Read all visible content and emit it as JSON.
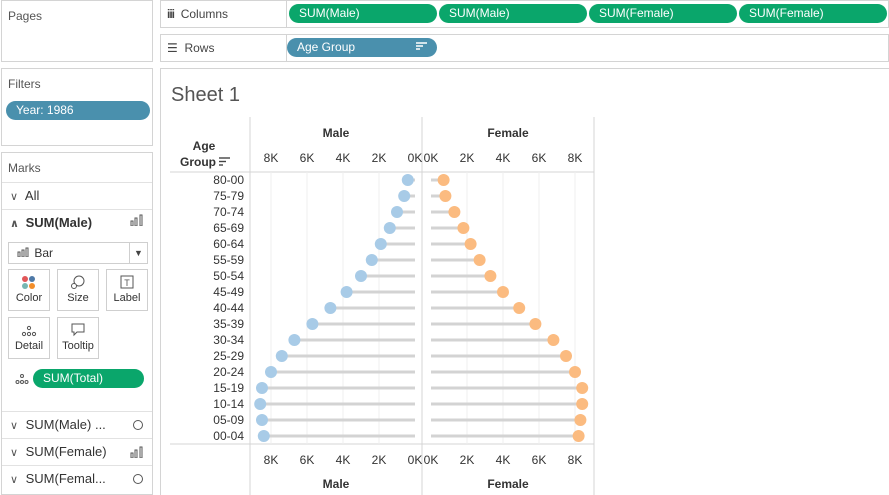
{
  "pages": {
    "title": "Pages"
  },
  "filters": {
    "title": "Filters",
    "pill": "Year: 1986"
  },
  "marks": {
    "title": "Marks",
    "all_label": "All",
    "active_label": "SUM(Male)",
    "mark_type": "Bar",
    "buttons": {
      "color": "Color",
      "size": "Size",
      "label": "Label",
      "detail": "Detail",
      "tooltip": "Tooltip"
    },
    "detail_pill": "SUM(Total)",
    "other_cards": [
      "SUM(Male) ...",
      "SUM(Female)",
      "SUM(Femal..."
    ]
  },
  "columns": {
    "label": "Columns",
    "pills": [
      "SUM(Male)",
      "SUM(Male)",
      "SUM(Female)",
      "SUM(Female)"
    ]
  },
  "rows": {
    "label": "Rows",
    "pill": "Age Group"
  },
  "sheet": {
    "title": "Sheet 1"
  },
  "colors": {
    "green": "#0aa66b",
    "blue": "#4a90ad",
    "male": "#a8cbe7",
    "female": "#fbbb80",
    "bar": "#d3d3d3"
  },
  "chart_data": {
    "type": "scatter",
    "row_header": [
      "Age",
      "Group"
    ],
    "panes": [
      {
        "title": "Male",
        "axis": "reversed",
        "ticks": [
          "8K",
          "6K",
          "4K",
          "2K",
          "0K"
        ],
        "tick_values": [
          8000,
          6000,
          4000,
          2000,
          0
        ],
        "range": [
          0,
          9000
        ]
      },
      {
        "title": "Female",
        "axis": "normal",
        "ticks": [
          "0K",
          "2K",
          "4K",
          "6K",
          "8K"
        ],
        "tick_values": [
          0,
          2000,
          4000,
          6000,
          8000
        ],
        "range": [
          0,
          9000
        ]
      }
    ],
    "categories": [
      "80-00",
      "75-79",
      "70-74",
      "65-69",
      "60-64",
      "55-59",
      "50-54",
      "45-49",
      "40-44",
      "35-39",
      "30-34",
      "25-29",
      "20-24",
      "15-19",
      "10-14",
      "05-09",
      "00-04"
    ],
    "series": [
      {
        "name": "Male",
        "values": [
          400,
          600,
          1000,
          1400,
          1900,
          2400,
          3000,
          3800,
          4700,
          5700,
          6700,
          7400,
          8000,
          8500,
          8600,
          8500,
          8400
        ]
      },
      {
        "name": "Female",
        "values": [
          700,
          800,
          1300,
          1800,
          2200,
          2700,
          3300,
          4000,
          4900,
          5800,
          6800,
          7500,
          8000,
          8400,
          8400,
          8300,
          8200
        ]
      }
    ]
  }
}
